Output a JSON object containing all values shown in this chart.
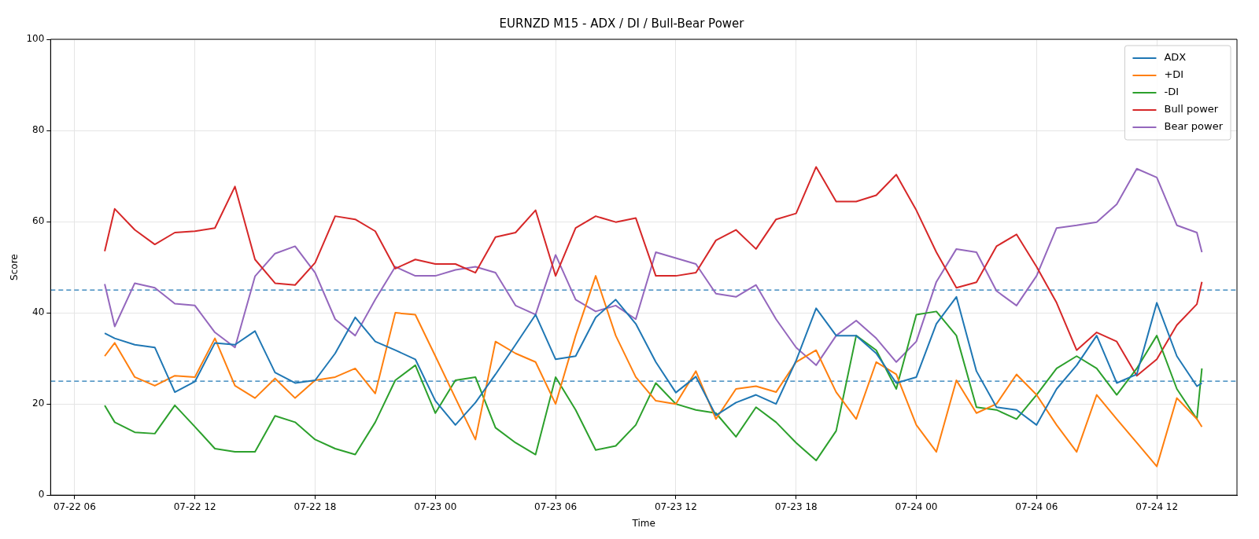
{
  "chart_data": {
    "type": "line",
    "title": "EURNZD M15 - ADX / DI / Bull-Bear Power",
    "xlabel": "Time",
    "ylabel": "Score",
    "x": [
      "--07-22T07:30",
      "--07-22T08:00",
      "--07-22T09:00",
      "--07-22T10:00",
      "--07-22T11:00",
      "--07-22T12:00",
      "--07-22T13:00",
      "--07-22T14:00",
      "--07-22T15:00",
      "--07-22T16:00",
      "--07-22T17:00",
      "--07-22T18:00",
      "--07-22T19:00",
      "--07-22T20:00",
      "--07-22T21:00",
      "--07-22T22:00",
      "--07-22T23:00",
      "--07-23T00:00",
      "--07-23T01:00",
      "--07-23T02:00",
      "--07-23T03:00",
      "--07-23T04:00",
      "--07-23T05:00",
      "--07-23T06:00",
      "--07-23T07:00",
      "--07-23T08:00",
      "--07-23T09:00",
      "--07-23T10:00",
      "--07-23T11:00",
      "--07-23T12:00",
      "--07-23T13:00",
      "--07-23T14:00",
      "--07-23T15:00",
      "--07-23T16:00",
      "--07-23T17:00",
      "--07-23T18:00",
      "--07-23T19:00",
      "--07-23T20:00",
      "--07-23T21:00",
      "--07-23T22:00",
      "--07-23T23:00",
      "--07-24T00:00",
      "--07-24T01:00",
      "--07-24T02:00",
      "--07-24T03:00",
      "--07-24T04:00",
      "--07-24T05:00",
      "--07-24T06:00",
      "--07-24T07:00",
      "--07-24T08:00",
      "--07-24T09:00",
      "--07-24T10:00",
      "--07-24T11:00",
      "--07-24T12:00",
      "--07-24T13:00",
      "--07-24T14:00",
      "--07-24T14:15"
    ],
    "series": [
      {
        "name": "ADX",
        "color": "#1f77b4",
        "values": [
          35.5,
          34.4,
          33,
          32.4,
          22.6,
          24.9,
          33.4,
          33,
          36,
          26.9,
          24.6,
          25.2,
          31.1,
          39,
          33.7,
          31.8,
          29.8,
          20.7,
          15.4,
          20.3,
          26.5,
          33,
          39.6,
          29.8,
          30.5,
          39,
          42.9,
          37.6,
          29.2,
          22.5,
          26,
          17.5,
          20.3,
          22,
          20,
          29.5,
          41,
          35,
          35,
          31.1,
          24.6,
          25.9,
          37.6,
          43.5,
          27.2,
          19.3,
          18.7,
          15.4,
          23.3,
          28.5,
          35,
          24.6,
          26.5,
          42.2,
          30.5,
          23.9,
          24.6
        ]
      },
      {
        "name": "+DI",
        "color": "#ff7f0e",
        "values": [
          30.5,
          33.4,
          25.9,
          24,
          26.2,
          25.9,
          34.4,
          24,
          21.3,
          25.6,
          21.3,
          25.2,
          25.9,
          27.8,
          22.3,
          40,
          39.6,
          30.5,
          21.3,
          12.2,
          33.7,
          31.1,
          29.2,
          20,
          35,
          48.1,
          35,
          25.9,
          20.7,
          20,
          27.2,
          16.7,
          23.3,
          23.9,
          22.6,
          29.2,
          31.8,
          22.6,
          16.7,
          29.2,
          26.5,
          15.4,
          9.5,
          25.2,
          18,
          20,
          26.5,
          22,
          15.4,
          9.5,
          22,
          16.7,
          11.5,
          6.3,
          21.3,
          16.7,
          15
        ]
      },
      {
        "name": "-DI",
        "color": "#2ca02c",
        "values": [
          19.7,
          16,
          13.8,
          13.5,
          19.7,
          15,
          10.2,
          9.5,
          9.5,
          17.4,
          16,
          12.2,
          10.2,
          8.9,
          16,
          25.2,
          28.5,
          18,
          25.2,
          25.9,
          14.8,
          11.5,
          8.9,
          25.9,
          18.7,
          9.9,
          10.8,
          15.4,
          24.6,
          20,
          18.7,
          18,
          12.8,
          19.3,
          16,
          11.5,
          7.6,
          14.1,
          35,
          31.8,
          23.3,
          39.6,
          40.3,
          35,
          19.3,
          18.7,
          16.7,
          22,
          27.8,
          30.5,
          27.8,
          22,
          27.8,
          35,
          23.3,
          16.7,
          27.8
        ]
      },
      {
        "name": "Bull power",
        "color": "#d62728",
        "values": [
          53.5,
          62.8,
          58.2,
          55,
          57.6,
          57.9,
          58.6,
          67.7,
          51.7,
          46.5,
          46.1,
          51,
          61.2,
          60.5,
          57.9,
          49.7,
          51.7,
          50.7,
          50.7,
          48.8,
          56.6,
          57.6,
          62.5,
          48.1,
          58.6,
          61.2,
          59.9,
          60.8,
          48.1,
          48.1,
          48.8,
          55.9,
          58.2,
          54,
          60.5,
          61.8,
          72,
          64.4,
          64.4,
          65.8,
          70.3,
          62.5,
          53.3,
          45.5,
          46.7,
          54.6,
          57.2,
          50.1,
          42.2,
          31.8,
          35.7,
          33.7,
          26.2,
          29.8,
          37.3,
          41.9,
          46.8
        ]
      },
      {
        "name": "Bear power",
        "color": "#9467bd",
        "values": [
          46.3,
          37,
          46.5,
          45.5,
          42,
          41.6,
          35.7,
          32.4,
          48,
          53,
          54.6,
          48.8,
          38.6,
          35,
          42.9,
          50.1,
          48.1,
          48.1,
          49.4,
          50.1,
          48.8,
          41.6,
          39.6,
          52.7,
          42.9,
          40.3,
          41.6,
          38.6,
          53.3,
          52,
          50.7,
          44.2,
          43.5,
          46.1,
          38.6,
          32.4,
          28.5,
          35,
          38.3,
          34.4,
          29.2,
          33.7,
          46.8,
          54,
          53.3,
          44.8,
          41.6,
          48.1,
          58.6,
          59.2,
          59.9,
          63.8,
          71.6,
          69.7,
          59.2,
          57.6,
          53.3
        ]
      }
    ],
    "xlim": [
      "--07-22T04:48",
      "--07-24T16:00"
    ],
    "xticks": [
      {
        "value": "--07-22T06:00",
        "label": "07-22 06"
      },
      {
        "value": "--07-22T12:00",
        "label": "07-22 12"
      },
      {
        "value": "--07-22T18:00",
        "label": "07-22 18"
      },
      {
        "value": "--07-23T00:00",
        "label": "07-23 00"
      },
      {
        "value": "--07-23T06:00",
        "label": "07-23 06"
      },
      {
        "value": "--07-23T12:00",
        "label": "07-23 12"
      },
      {
        "value": "--07-23T18:00",
        "label": "07-23 18"
      },
      {
        "value": "--07-24T00:00",
        "label": "07-24 00"
      },
      {
        "value": "--07-24T06:00",
        "label": "07-24 06"
      },
      {
        "value": "--07-24T12:00",
        "label": "07-24 12"
      }
    ],
    "ylim": [
      0,
      100
    ],
    "yticks": [
      0,
      20,
      40,
      60,
      80,
      100
    ],
    "ref_lines": [
      {
        "axis": "y",
        "value": 45,
        "color": "#1f77b4",
        "line_style": "dashed"
      },
      {
        "axis": "y",
        "value": 25,
        "color": "#1f77b4",
        "line_style": "dashed"
      }
    ],
    "grid": true,
    "legend": "top right",
    "marker": "none",
    "line_style": "solid"
  }
}
